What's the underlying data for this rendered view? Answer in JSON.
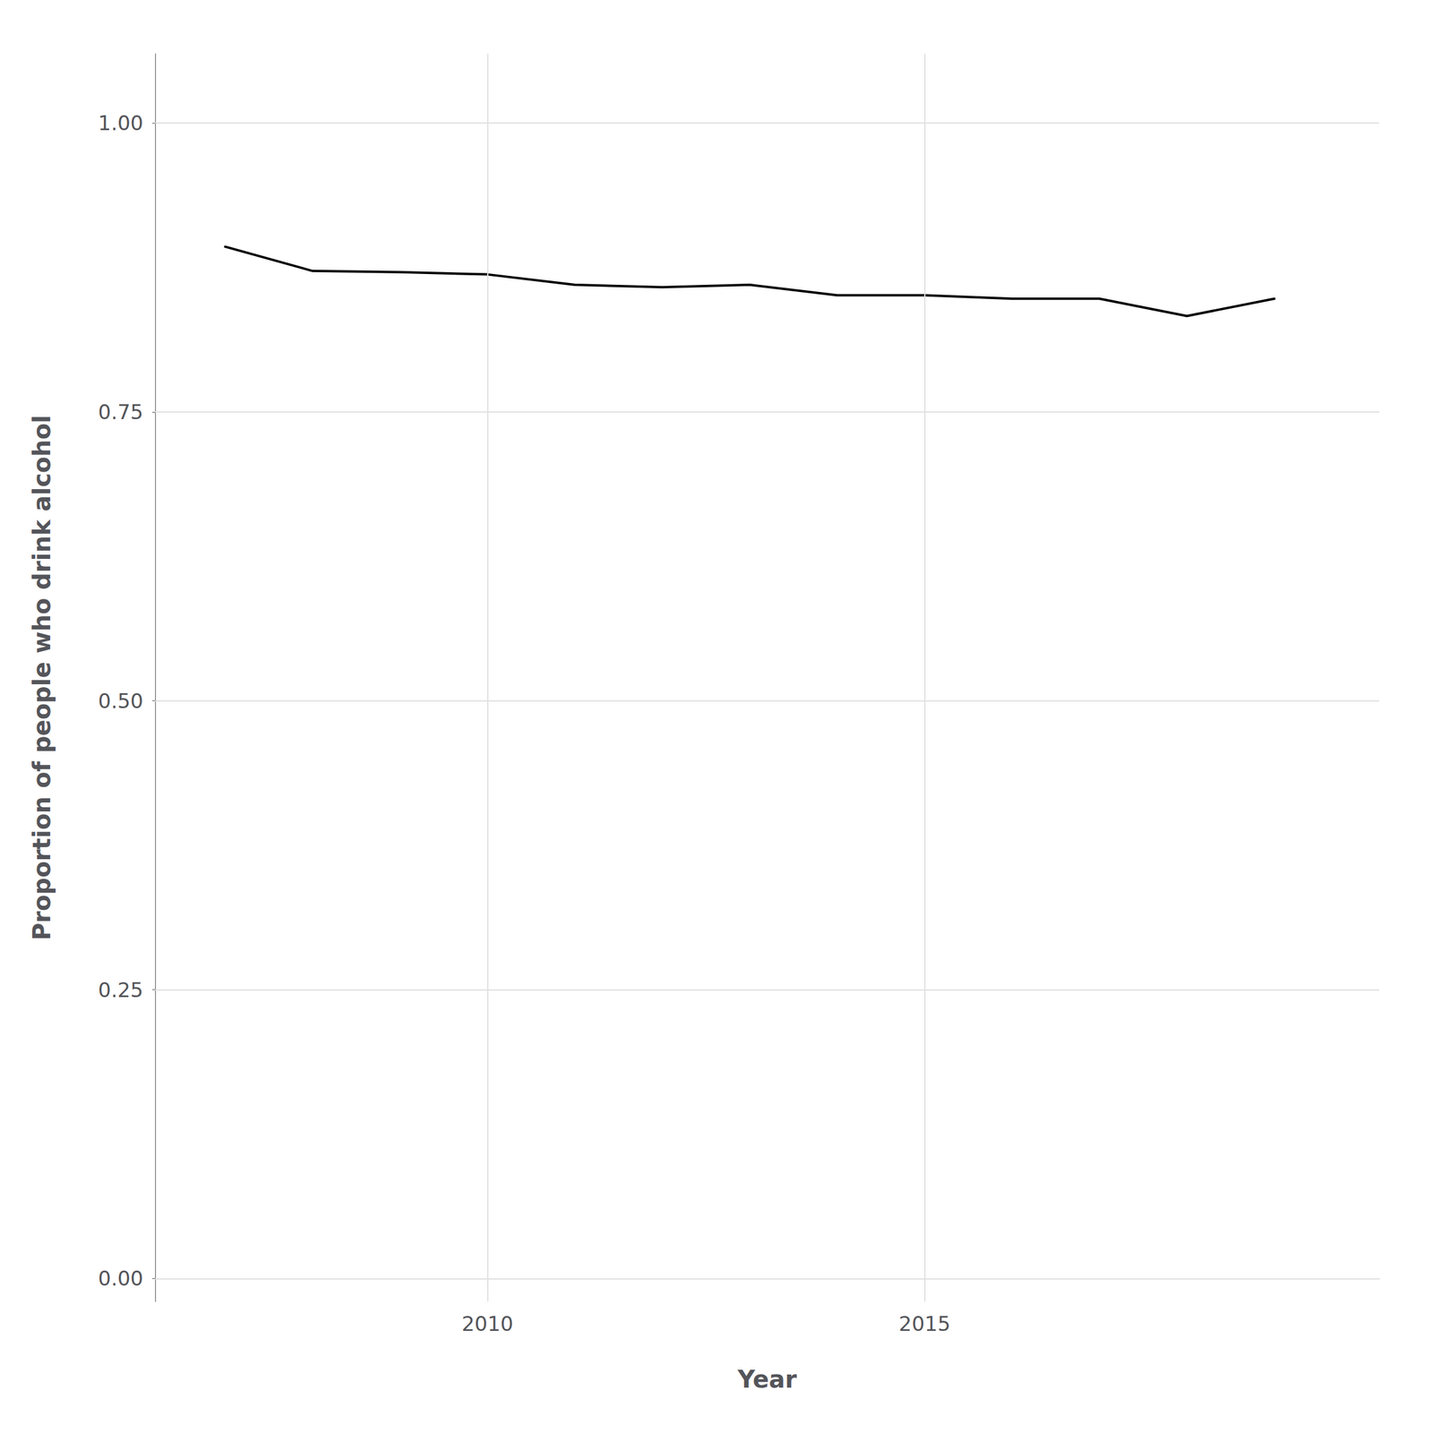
{
  "chart_data": {
    "type": "line",
    "x": [
      2007,
      2008,
      2009,
      2010,
      2011,
      2012,
      2013,
      2014,
      2015,
      2016,
      2017,
      2018,
      2019
    ],
    "values": [
      0.893,
      0.872,
      0.871,
      0.869,
      0.86,
      0.858,
      0.86,
      0.851,
      0.851,
      0.848,
      0.848,
      0.833,
      0.848
    ],
    "xlabel": "Year",
    "ylabel": "Proportion of people who drink alcohol",
    "xlim": [
      2006.2,
      2020.2
    ],
    "ylim": [
      -0.02,
      1.06
    ],
    "xticks": [
      2010,
      2015
    ],
    "yticks": [
      {
        "value": 0,
        "label": "0.00"
      },
      0.25,
      {
        "value": 0.5,
        "label": "0.50"
      },
      0.75,
      {
        "value": 1,
        "label": "1.00"
      }
    ],
    "color": "#000000",
    "grid": true
  }
}
